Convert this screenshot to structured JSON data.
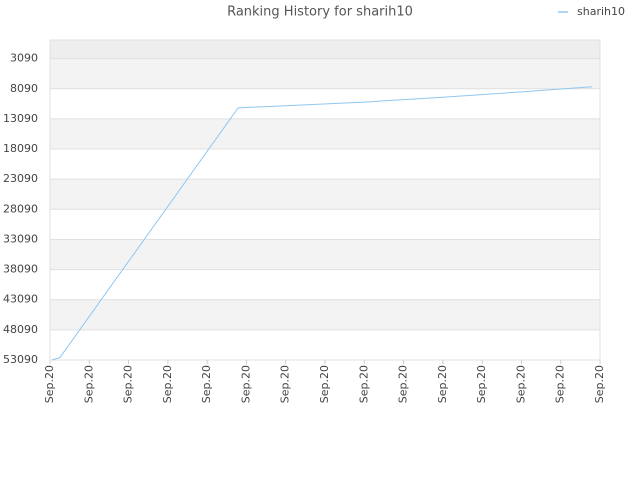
{
  "chart_data": {
    "type": "line",
    "title": "Ranking History for sharih10",
    "x": [
      0.05,
      0.25,
      4.79,
      6,
      8,
      10,
      12,
      13.8
    ],
    "series": [
      {
        "name": "sharih10",
        "color": "#90c8f0",
        "values": [
          53090,
          52700,
          11260,
          10900,
          10300,
          9500,
          8600,
          7760
        ]
      }
    ],
    "xlim": [
      0,
      14
    ],
    "xticks": [
      {
        "value": 0,
        "label": "Sep.20"
      },
      {
        "value": 1,
        "label": "Sep.20"
      },
      {
        "value": 2,
        "label": "Sep.20"
      },
      {
        "value": 3,
        "label": "Sep.20"
      },
      {
        "value": 4,
        "label": "Sep.20"
      },
      {
        "value": 5,
        "label": "Sep.20"
      },
      {
        "value": 6,
        "label": "Sep.20"
      },
      {
        "value": 7,
        "label": "Sep.20"
      },
      {
        "value": 8,
        "label": "Sep.20"
      },
      {
        "value": 9,
        "label": "Sep.20"
      },
      {
        "value": 10,
        "label": "Sep.20"
      },
      {
        "value": 11,
        "label": "Sep.20"
      },
      {
        "value": 12,
        "label": "Sep.20"
      },
      {
        "value": 13,
        "label": "Sep.20"
      },
      {
        "value": 14,
        "label": "Sep.20"
      }
    ],
    "ylim": [
      53090,
      0
    ],
    "yticks": [
      3090,
      8090,
      13090,
      18090,
      23090,
      28090,
      33090,
      38090,
      43090,
      48090,
      53090
    ],
    "grid": true,
    "legend": "top-right"
  }
}
